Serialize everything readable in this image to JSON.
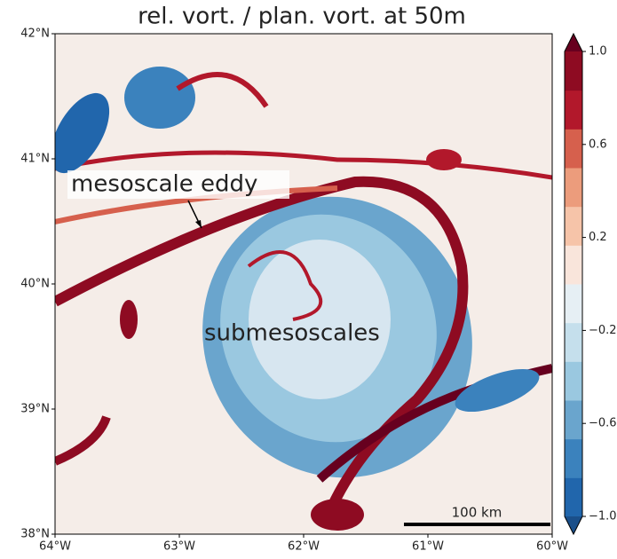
{
  "title": "rel. vort. / plan. vort. at 50m",
  "lat_ticks": [
    "42°N",
    "41°N",
    "40°N",
    "39°N",
    "38°N"
  ],
  "lon_ticks": [
    "64°W",
    "63°W",
    "62°W",
    "61°W",
    "60°W"
  ],
  "annotations": [
    "mesoscale eddy",
    "submesoscales"
  ],
  "scale_bar": "100 km",
  "colorbar": {
    "range": [
      -1,
      1
    ],
    "ticks": [
      {
        "value": 1,
        "label": "1.0"
      },
      {
        "value": 0.6,
        "label": "0.6"
      },
      {
        "value": 0.2,
        "label": "0.2"
      },
      {
        "value": -0.2,
        "label": "−0.2"
      },
      {
        "value": -0.6,
        "label": "−0.6"
      },
      {
        "value": -1,
        "label": "−1.0"
      }
    ],
    "colors": [
      "#2166ac",
      "#3b82bd",
      "#6aa5cd",
      "#9ac8e0",
      "#c5dfec",
      "#e6eff4",
      "#f9e5db",
      "#f6c4a9",
      "#ec9c7c",
      "#d6604d",
      "#b2182b",
      "#8e0b22"
    ],
    "under": "#1a4f8a",
    "over": "#67001f"
  }
}
